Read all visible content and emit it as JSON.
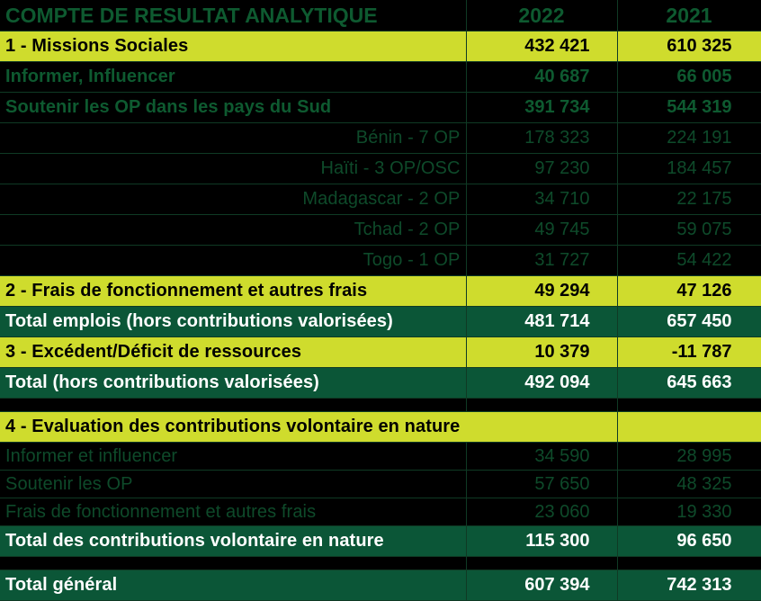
{
  "header": {
    "title": "COMPTE DE RESULTAT ANALYTIQUE",
    "y1": "2022",
    "y2": "2021"
  },
  "rows": [
    {
      "label": "1 - Missions Sociales",
      "v1": "432 421",
      "v2": "610 325"
    },
    {
      "label": "Informer, Influencer",
      "v1": "40 687",
      "v2": "66 005"
    },
    {
      "label": "Soutenir les OP dans les pays du Sud",
      "v1": "391 734",
      "v2": "544 319"
    },
    {
      "label": "Bénin - 7 OP",
      "v1": "178 323",
      "v2": "224 191"
    },
    {
      "label": "Haïti - 3 OP/OSC",
      "v1": "97 230",
      "v2": "184 457"
    },
    {
      "label": "Madagascar - 2 OP",
      "v1": "34 710",
      "v2": "22 175"
    },
    {
      "label": "Tchad - 2 OP",
      "v1": "49 745",
      "v2": "59 075"
    },
    {
      "label": "Togo - 1 OP",
      "v1": "31 727",
      "v2": "54 422"
    },
    {
      "label": "2 - Frais de fonctionnement et autres frais",
      "v1": "49 294",
      "v2": "47 126"
    },
    {
      "label": "Total emplois (hors contributions valorisées)",
      "v1": "481 714",
      "v2": "657 450"
    },
    {
      "label": "3 - Excédent/Déficit de ressources",
      "v1": "10 379",
      "v2": "-11 787"
    },
    {
      "label": "Total (hors contributions valorisées)",
      "v1": "492 094",
      "v2": "645 663"
    },
    {
      "label": "4 - Evaluation des contributions volontaire en nature"
    },
    {
      "label": "Informer et influencer",
      "v1": "34 590",
      "v2": "28 995"
    },
    {
      "label": "Soutenir les OP",
      "v1": "57 650",
      "v2": "48 325"
    },
    {
      "label": "Frais de fonctionnement et autres frais",
      "v1": "23 060",
      "v2": "19 330"
    },
    {
      "label": "Total des contributions volontaire en nature",
      "v1": "115 300",
      "v2": "96 650"
    },
    {
      "label": "Total général",
      "v1": "607 394",
      "v2": "742 313"
    }
  ]
}
